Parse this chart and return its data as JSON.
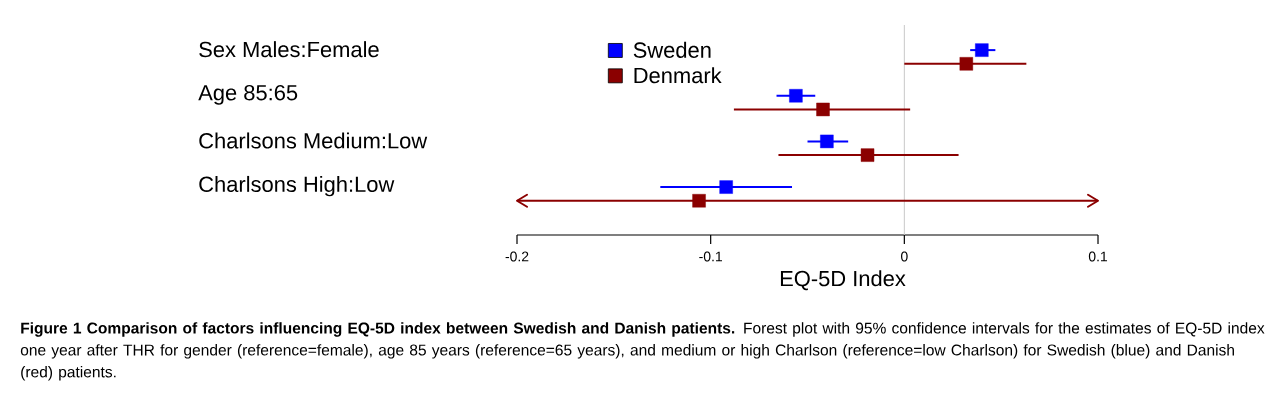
{
  "chart_data": {
    "type": "scatter",
    "orientation": "horizontal",
    "xlabel": "EQ-5D Index",
    "categories": [
      "Sex Males:Female",
      "Age 85:65",
      "Charlsons Medium:Low",
      "Charlsons High:Low"
    ],
    "series": [
      {
        "name": "Sweden",
        "color": "#0000ff",
        "values": [
          0.04,
          -0.056,
          -0.04,
          -0.092
        ],
        "errors": [
          [
            0.034,
            0.047
          ],
          [
            -0.066,
            -0.046
          ],
          [
            -0.05,
            -0.029
          ],
          [
            -0.126,
            -0.058
          ]
        ]
      },
      {
        "name": "Denmark",
        "color": "#8b0000",
        "values": [
          0.032,
          -0.042,
          -0.019,
          -0.106
        ],
        "errors": [
          [
            0.0,
            0.063
          ],
          [
            -0.088,
            0.003
          ],
          [
            -0.065,
            0.028
          ],
          [
            -0.2,
            0.1
          ]
        ]
      }
    ],
    "xlim": [
      -0.2,
      0.1
    ],
    "xticks": [
      -0.2,
      -0.1,
      0,
      0.1
    ],
    "ref_lines": [
      {
        "axis": "x",
        "value": 0,
        "color": "#c8c8c8"
      }
    ],
    "legend": "top left",
    "marker": "square",
    "annotations": [
      "**Figure 1 Comparison of factors influencing EQ-5D index between Swedish and Danish patients.** Forest plot with 95% confidence intervals for the estimates of EQ-5D index one year after THR for gender (reference=female), age 85 years (reference=65 years), and medium or high Charlson (reference=low Charlson) for Swedish (blue) and Danish (red) patients."
    ]
  }
}
